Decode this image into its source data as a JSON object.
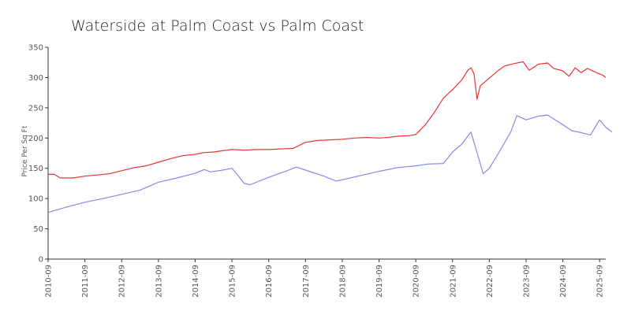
{
  "chart_data": {
    "type": "line",
    "title": "Waterside at Palm Coast vs Palm Coast",
    "xlabel": "",
    "ylabel": "Price Per Sq Ft",
    "ylim": [
      0,
      350
    ],
    "yticks": [
      0,
      50,
      100,
      150,
      200,
      250,
      300,
      350
    ],
    "xlim": [
      "2010-09",
      "2025-11"
    ],
    "xticks": [
      "2010-09",
      "2011-09",
      "2012-09",
      "2013-09",
      "2014-09",
      "2015-09",
      "2016-09",
      "2017-09",
      "2018-09",
      "2019-09",
      "2020-09",
      "2021-09",
      "2022-09",
      "2023-09",
      "2024-09",
      "2025-09"
    ],
    "grid": false,
    "legend": "none",
    "series": [
      {
        "color": "#ee3333",
        "points": [
          [
            "2010-09",
            140
          ],
          [
            "2010-11",
            140
          ],
          [
            "2011-01",
            134
          ],
          [
            "2011-05",
            134
          ],
          [
            "2011-09",
            137
          ],
          [
            "2012-01",
            139
          ],
          [
            "2012-05",
            141
          ],
          [
            "2012-09",
            146
          ],
          [
            "2013-01",
            151
          ],
          [
            "2013-05",
            154
          ],
          [
            "2013-09",
            160
          ],
          [
            "2014-01",
            166
          ],
          [
            "2014-05",
            171
          ],
          [
            "2014-09",
            173
          ],
          [
            "2014-12",
            176
          ],
          [
            "2015-03",
            177
          ],
          [
            "2015-06",
            179
          ],
          [
            "2015-09",
            181
          ],
          [
            "2016-01",
            180
          ],
          [
            "2016-05",
            181
          ],
          [
            "2016-09",
            181
          ],
          [
            "2017-01",
            182
          ],
          [
            "2017-05",
            183
          ],
          [
            "2017-09",
            193
          ],
          [
            "2018-01",
            196
          ],
          [
            "2018-05",
            197
          ],
          [
            "2018-09",
            198
          ],
          [
            "2019-01",
            200
          ],
          [
            "2019-05",
            201
          ],
          [
            "2019-09",
            200
          ],
          [
            "2019-12",
            201
          ],
          [
            "2020-03",
            203
          ],
          [
            "2020-07",
            204
          ],
          [
            "2020-09",
            206
          ],
          [
            "2020-12",
            221
          ],
          [
            "2021-03",
            242
          ],
          [
            "2021-06",
            266
          ],
          [
            "2021-09",
            280
          ],
          [
            "2021-12",
            296
          ],
          [
            "2022-02",
            312
          ],
          [
            "2022-03",
            316
          ],
          [
            "2022-04",
            306
          ],
          [
            "2022-05",
            264
          ],
          [
            "2022-06",
            286
          ],
          [
            "2022-09",
            299
          ],
          [
            "2022-12",
            312
          ],
          [
            "2023-02",
            319
          ],
          [
            "2023-05",
            323
          ],
          [
            "2023-08",
            326
          ],
          [
            "2023-10",
            312
          ],
          [
            "2024-01",
            322
          ],
          [
            "2024-04",
            324
          ],
          [
            "2024-06",
            315
          ],
          [
            "2024-09",
            311
          ],
          [
            "2024-11",
            302
          ],
          [
            "2025-01",
            316
          ],
          [
            "2025-03",
            308
          ],
          [
            "2025-05",
            315
          ],
          [
            "2025-08",
            308
          ],
          [
            "2025-10",
            304
          ],
          [
            "2025-11",
            300
          ]
        ]
      },
      {
        "color": "#8888ee",
        "points": [
          [
            "2010-09",
            77
          ],
          [
            "2011-03",
            86
          ],
          [
            "2011-09",
            94
          ],
          [
            "2012-03",
            100
          ],
          [
            "2012-09",
            107
          ],
          [
            "2013-03",
            114
          ],
          [
            "2013-09",
            127
          ],
          [
            "2014-03",
            134
          ],
          [
            "2014-09",
            142
          ],
          [
            "2014-12",
            148
          ],
          [
            "2015-02",
            144
          ],
          [
            "2015-06",
            147
          ],
          [
            "2015-09",
            150
          ],
          [
            "2015-11",
            138
          ],
          [
            "2016-01",
            125
          ],
          [
            "2016-03",
            123
          ],
          [
            "2016-09",
            135
          ],
          [
            "2017-03",
            146
          ],
          [
            "2017-06",
            152
          ],
          [
            "2017-09",
            147
          ],
          [
            "2018-03",
            137
          ],
          [
            "2018-07",
            129
          ],
          [
            "2018-09",
            131
          ],
          [
            "2019-03",
            138
          ],
          [
            "2019-09",
            145
          ],
          [
            "2020-03",
            151
          ],
          [
            "2020-09",
            154
          ],
          [
            "2021-01",
            157
          ],
          [
            "2021-06",
            158
          ],
          [
            "2021-09",
            177
          ],
          [
            "2021-12",
            190
          ],
          [
            "2022-03",
            210
          ],
          [
            "2022-07",
            141
          ],
          [
            "2022-09",
            150
          ],
          [
            "2022-12",
            175
          ],
          [
            "2023-04",
            210
          ],
          [
            "2023-06",
            237
          ],
          [
            "2023-09",
            230
          ],
          [
            "2024-01",
            236
          ],
          [
            "2024-04",
            238
          ],
          [
            "2024-09",
            222
          ],
          [
            "2024-12",
            212
          ],
          [
            "2025-03",
            209
          ],
          [
            "2025-06",
            205
          ],
          [
            "2025-09",
            230
          ],
          [
            "2025-11",
            218
          ],
          [
            "2026-01",
            210
          ]
        ]
      }
    ]
  }
}
